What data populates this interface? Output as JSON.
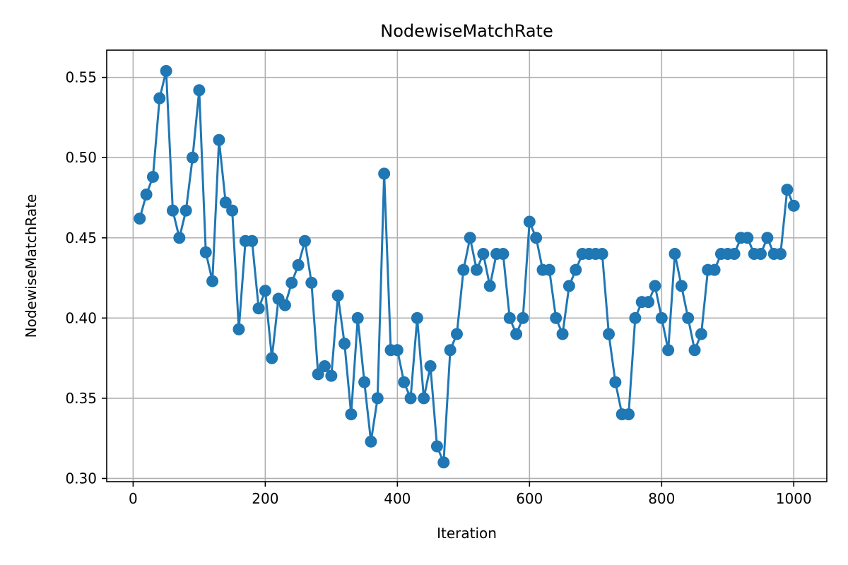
{
  "chart_data": {
    "type": "line",
    "title": "NodewiseMatchRate",
    "xlabel": "Iteration",
    "ylabel": "NodewiseMatchRate",
    "xlim": [
      -40,
      1050
    ],
    "ylim": [
      0.298,
      0.567
    ],
    "xticks": [
      0,
      200,
      400,
      600,
      800,
      1000
    ],
    "yticks": [
      0.3,
      0.35,
      0.4,
      0.45,
      0.5,
      0.55
    ],
    "xtick_labels": [
      "0",
      "200",
      "400",
      "600",
      "800",
      "1000"
    ],
    "ytick_labels": [
      "0.30",
      "0.35",
      "0.40",
      "0.45",
      "0.50",
      "0.55"
    ],
    "grid": true,
    "series": [
      {
        "name": "NodewiseMatchRate",
        "color": "#1f77b4",
        "marker": "circle",
        "x": [
          10,
          20,
          30,
          40,
          50,
          60,
          70,
          80,
          90,
          100,
          110,
          120,
          130,
          140,
          150,
          160,
          170,
          180,
          190,
          200,
          210,
          220,
          230,
          240,
          250,
          260,
          270,
          280,
          290,
          300,
          310,
          320,
          330,
          340,
          350,
          360,
          370,
          380,
          390,
          400,
          410,
          420,
          430,
          440,
          450,
          460,
          470,
          480,
          490,
          500,
          510,
          520,
          530,
          540,
          550,
          560,
          570,
          580,
          590,
          600,
          610,
          620,
          630,
          640,
          650,
          660,
          670,
          680,
          690,
          700,
          710,
          720,
          730,
          740,
          750,
          760,
          770,
          780,
          790,
          800,
          810,
          820,
          830,
          840,
          850,
          860,
          870,
          880,
          890,
          900,
          910,
          920,
          930,
          940,
          950,
          960,
          970,
          980,
          990,
          1000
        ],
        "y": [
          0.462,
          0.477,
          0.488,
          0.537,
          0.554,
          0.467,
          0.45,
          0.467,
          0.5,
          0.542,
          0.441,
          0.423,
          0.511,
          0.472,
          0.467,
          0.393,
          0.448,
          0.448,
          0.406,
          0.417,
          0.375,
          0.412,
          0.408,
          0.422,
          0.433,
          0.448,
          0.422,
          0.365,
          0.37,
          0.364,
          0.414,
          0.384,
          0.34,
          0.4,
          0.36,
          0.323,
          0.35,
          0.49,
          0.38,
          0.38,
          0.36,
          0.35,
          0.4,
          0.35,
          0.37,
          0.32,
          0.31,
          0.38,
          0.39,
          0.43,
          0.45,
          0.43,
          0.44,
          0.42,
          0.44,
          0.44,
          0.4,
          0.39,
          0.4,
          0.46,
          0.45,
          0.43,
          0.43,
          0.4,
          0.39,
          0.42,
          0.43,
          0.44,
          0.44,
          0.44,
          0.44,
          0.39,
          0.36,
          0.34,
          0.34,
          0.4,
          0.41,
          0.41,
          0.42,
          0.4,
          0.38,
          0.44,
          0.42,
          0.4,
          0.38,
          0.39,
          0.43,
          0.43,
          0.44,
          0.44,
          0.44,
          0.45,
          0.45,
          0.44,
          0.44,
          0.45,
          0.44,
          0.44,
          0.48,
          0.47
        ]
      }
    ]
  }
}
